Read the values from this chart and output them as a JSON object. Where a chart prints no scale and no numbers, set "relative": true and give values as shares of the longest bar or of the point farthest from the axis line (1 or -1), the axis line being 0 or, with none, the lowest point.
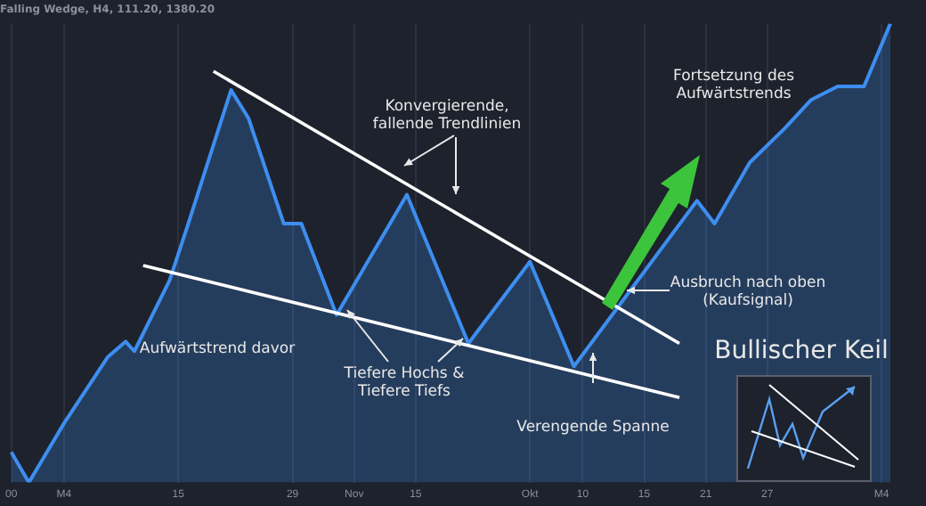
{
  "chart_data": {
    "type": "area",
    "title": "Falling Wedge, H4, 111.20, 1380.20",
    "relative": true,
    "grid": "x",
    "legend": false,
    "tick_labels": "x",
    "marker": "none",
    "categories": [
      "00",
      null,
      null,
      null,
      null,
      null,
      "M4",
      null,
      null,
      null,
      null,
      null,
      null,
      null,
      null,
      null,
      null,
      null,
      null,
      "15",
      null,
      null,
      null,
      null,
      null,
      null,
      null,
      null,
      null,
      null,
      null,
      null,
      "29",
      null,
      null,
      null,
      null,
      null,
      null,
      "Nov",
      null,
      null,
      null,
      null,
      null,
      null,
      "15",
      null,
      null,
      null,
      null,
      null,
      null,
      null,
      null,
      null,
      null,
      null,
      null,
      "Okt",
      null,
      null,
      null,
      null,
      null,
      "10",
      null,
      null,
      null,
      null,
      null,
      null,
      "15",
      null,
      null,
      null,
      null,
      null,
      null,
      "21",
      null,
      null,
      null,
      null,
      null,
      null,
      "27",
      null,
      null,
      null,
      null,
      null,
      null,
      null,
      null,
      null,
      null,
      null,
      null,
      "M4",
      null
    ],
    "series": [
      {
        "type": "area",
        "color": "#3d8ef0",
        "values": [
          0.066,
          null,
          0,
          null,
          null,
          null,
          0.129,
          null,
          null,
          null,
          null,
          0.274,
          null,
          0.307,
          0.286,
          null,
          null,
          null,
          0.44,
          null,
          0.556,
          null,
          null,
          null,
          null,
          0.855,
          null,
          0.793,
          null,
          null,
          null,
          0.564,
          null,
          0.564,
          null,
          null,
          null,
          0.365,
          null,
          null,
          null,
          null,
          null,
          null,
          null,
          0.627,
          null,
          null,
          null,
          null,
          null,
          null,
          0.303,
          null,
          null,
          null,
          null,
          null,
          null,
          0.481,
          null,
          null,
          null,
          null,
          0.253,
          null,
          null,
          null,
          null,
          null,
          null,
          null,
          null,
          null,
          null,
          null,
          null,
          null,
          0.614,
          null,
          0.564,
          null,
          null,
          null,
          0.697,
          null,
          null,
          null,
          0.772,
          null,
          null,
          0.834,
          null,
          null,
          0.863,
          null,
          null,
          0.863,
          null,
          null,
          1
        ]
      },
      {
        "type": "line",
        "color": "#ffffff",
        "values": [
          null,
          null,
          null,
          null,
          null,
          null,
          null,
          null,
          null,
          null,
          null,
          null,
          null,
          null,
          null,
          null,
          null,
          null,
          null,
          null,
          null,
          null,
          null,
          0.896,
          null,
          null,
          null,
          null,
          null,
          null,
          null,
          null,
          null,
          null,
          null,
          null,
          null,
          null,
          null,
          null,
          null,
          null,
          null,
          null,
          null,
          null,
          null,
          null,
          null,
          null,
          null,
          null,
          null,
          null,
          null,
          null,
          null,
          null,
          null,
          null,
          null,
          null,
          null,
          null,
          null,
          null,
          null,
          null,
          null,
          null,
          null,
          null,
          null,
          null,
          null,
          null,
          0.303,
          null,
          null,
          null,
          null,
          null,
          null,
          null,
          null,
          null,
          null,
          null,
          null,
          null,
          null,
          null,
          null,
          null,
          null,
          null,
          null,
          null,
          null,
          null,
          null
        ]
      },
      {
        "type": "line",
        "color": "#ffffff",
        "values": [
          null,
          null,
          null,
          null,
          null,
          null,
          null,
          null,
          null,
          null,
          null,
          null,
          null,
          null,
          null,
          0.473,
          null,
          null,
          null,
          null,
          null,
          null,
          null,
          null,
          null,
          null,
          null,
          null,
          null,
          null,
          null,
          null,
          null,
          null,
          null,
          null,
          null,
          null,
          null,
          null,
          null,
          null,
          null,
          null,
          null,
          null,
          null,
          null,
          null,
          null,
          null,
          null,
          null,
          null,
          null,
          null,
          null,
          null,
          null,
          null,
          null,
          null,
          null,
          null,
          null,
          null,
          null,
          null,
          null,
          null,
          null,
          null,
          null,
          null,
          null,
          null,
          0.185,
          null,
          null,
          null,
          null,
          null,
          null,
          null,
          null,
          null,
          null,
          null,
          null,
          null,
          null,
          null,
          null,
          null,
          null,
          null,
          null,
          null,
          null,
          null,
          null
        ]
      }
    ],
    "annotations": [
      "Konvergierende, fallende Trendlinien",
      "Fortsetzung des Aufwärtstrends",
      "Ausbruch nach oben (Kaufsignal)",
      "Aufwärtstrend davor",
      "Tiefere Hochs & Tiefere Tiefs",
      "Verengende Spanne",
      "Bullischer Keil"
    ]
  }
}
